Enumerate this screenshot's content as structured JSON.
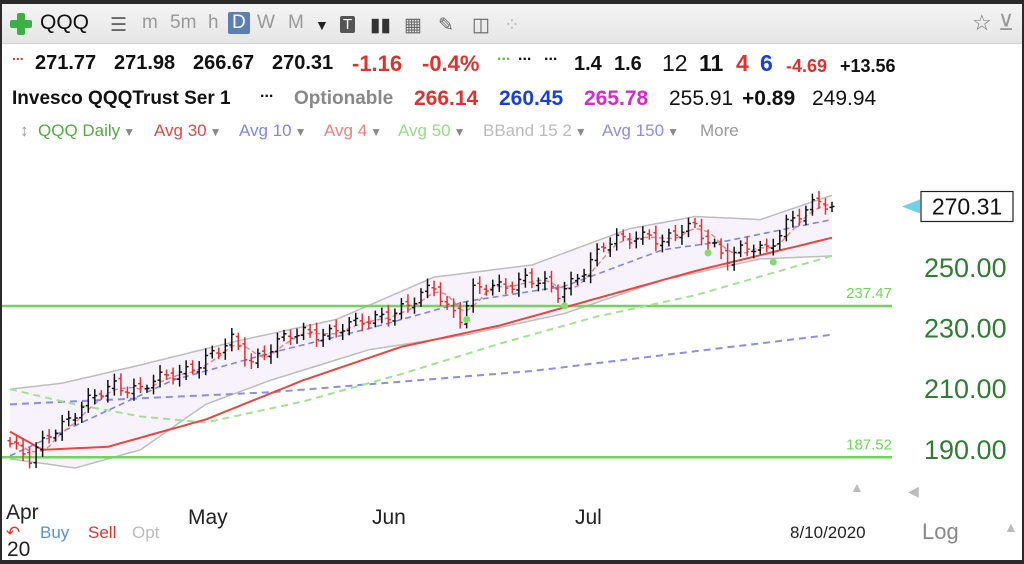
{
  "toolbar": {
    "symbol": "QQQ",
    "timeframes": [
      "m",
      "5m",
      "h",
      "D",
      "W",
      "M"
    ],
    "active_timeframe": "D"
  },
  "quote_row1": {
    "open": "271.77",
    "high": "271.98",
    "low": "266.67",
    "close": "270.31",
    "change": "-1.16",
    "change_pct": "-0.4%",
    "dots": "...",
    "v1": "1.4",
    "v2": "1.6",
    "v3": "12",
    "v4": "11",
    "v5": "4",
    "v6": "6",
    "v7": "-4.69",
    "v8": "+13.56"
  },
  "quote_row2": {
    "name": "Invesco QQQTrust Ser 1",
    "dots": "...",
    "optionable": "Optionable",
    "a1": "266.14",
    "a2": "260.45",
    "a3": "265.78",
    "a4": "255.91",
    "a5": "+0.89",
    "a6": "249.94"
  },
  "indicators": {
    "series": "QQQ Daily",
    "avg30": "Avg 30",
    "avg10": "Avg 10",
    "avg4": "Avg 4",
    "avg50": "Avg 50",
    "bband": "BBand 15 2",
    "avg150": "Avg 150",
    "more": "More"
  },
  "colors": {
    "avg30": "#e8473f",
    "avg10": "#7f86e6",
    "avg4": "#ee8080",
    "avg50": "#8fe07f",
    "bband": "#bdbdbd",
    "avg150": "#8a8ee8",
    "hline": "#6fd65a",
    "price_tag": "#6fd0ea"
  },
  "bottom": {
    "buy": "Buy",
    "sell": "Sell",
    "opt": "Opt",
    "date": "8/10/2020",
    "log": "Log",
    "year": "20"
  },
  "chart_data": {
    "type": "line",
    "ylim": [
      183,
      285
    ],
    "y_ticks": [
      "250.00",
      "230.00",
      "210.00",
      "190.00"
    ],
    "y_tick_values": [
      250,
      230,
      210,
      190
    ],
    "x_labels": [
      "Apr",
      "May",
      "Jun",
      "Jul"
    ],
    "last_price": "270.31",
    "horizontal_lines": [
      {
        "value": 237.47,
        "label": "237.47"
      },
      {
        "value": 187.52,
        "label": "187.52"
      }
    ],
    "price_anchors": [
      {
        "bar": 0,
        "price": 192
      },
      {
        "bar": 3,
        "price": 186
      },
      {
        "bar": 6,
        "price": 196
      },
      {
        "bar": 10,
        "price": 202
      },
      {
        "bar": 13,
        "price": 207
      },
      {
        "bar": 16,
        "price": 212
      },
      {
        "bar": 20,
        "price": 210
      },
      {
        "bar": 24,
        "price": 214
      },
      {
        "bar": 28,
        "price": 218
      },
      {
        "bar": 32,
        "price": 222
      },
      {
        "bar": 34,
        "price": 226
      },
      {
        "bar": 37,
        "price": 220
      },
      {
        "bar": 41,
        "price": 225
      },
      {
        "bar": 45,
        "price": 229
      },
      {
        "bar": 49,
        "price": 229
      },
      {
        "bar": 53,
        "price": 231
      },
      {
        "bar": 57,
        "price": 235
      },
      {
        "bar": 61,
        "price": 237
      },
      {
        "bar": 65,
        "price": 244
      },
      {
        "bar": 67,
        "price": 238
      },
      {
        "bar": 69,
        "price": 234
      },
      {
        "bar": 71,
        "price": 242
      },
      {
        "bar": 75,
        "price": 244
      },
      {
        "bar": 79,
        "price": 247
      },
      {
        "bar": 82,
        "price": 244
      },
      {
        "bar": 84,
        "price": 241
      },
      {
        "bar": 87,
        "price": 248
      },
      {
        "bar": 91,
        "price": 257
      },
      {
        "bar": 95,
        "price": 260
      },
      {
        "bar": 98,
        "price": 262
      },
      {
        "bar": 100,
        "price": 258
      },
      {
        "bar": 103,
        "price": 262
      },
      {
        "bar": 105,
        "price": 264
      },
      {
        "bar": 107,
        "price": 260
      },
      {
        "bar": 110,
        "price": 253
      },
      {
        "bar": 113,
        "price": 256
      },
      {
        "bar": 116,
        "price": 257
      },
      {
        "bar": 119,
        "price": 265
      },
      {
        "bar": 122,
        "price": 268
      },
      {
        "bar": 124,
        "price": 272
      },
      {
        "bar": 126,
        "price": 270.3
      }
    ],
    "bar_count": 127,
    "lines": {
      "avg30": [
        [
          0,
          196
        ],
        [
          5,
          190
        ],
        [
          15,
          191
        ],
        [
          30,
          200
        ],
        [
          45,
          213
        ],
        [
          60,
          224
        ],
        [
          75,
          231
        ],
        [
          90,
          240
        ],
        [
          105,
          249
        ],
        [
          126,
          260
        ]
      ],
      "avg10": [
        [
          0,
          188
        ],
        [
          10,
          198
        ],
        [
          25,
          213
        ],
        [
          40,
          222
        ],
        [
          55,
          230
        ],
        [
          70,
          239
        ],
        [
          85,
          244
        ],
        [
          100,
          256
        ],
        [
          110,
          259
        ],
        [
          126,
          266
        ]
      ],
      "avg50": [
        [
          0,
          210
        ],
        [
          10,
          205
        ],
        [
          20,
          201
        ],
        [
          30,
          199
        ],
        [
          45,
          206
        ],
        [
          60,
          215
        ],
        [
          75,
          225
        ],
        [
          90,
          234
        ],
        [
          105,
          241
        ],
        [
          126,
          254
        ]
      ],
      "avg150": [
        [
          0,
          205
        ],
        [
          40,
          209
        ],
        [
          80,
          216
        ],
        [
          126,
          228
        ]
      ],
      "bb_upper": [
        [
          0,
          210
        ],
        [
          8,
          212
        ],
        [
          20,
          218
        ],
        [
          35,
          226
        ],
        [
          50,
          233
        ],
        [
          65,
          247
        ],
        [
          80,
          251
        ],
        [
          95,
          263
        ],
        [
          105,
          267
        ],
        [
          115,
          266
        ],
        [
          126,
          274
        ]
      ],
      "bb_lower": [
        [
          0,
          187
        ],
        [
          10,
          184
        ],
        [
          20,
          190
        ],
        [
          30,
          205
        ],
        [
          40,
          213
        ],
        [
          55,
          223
        ],
        [
          70,
          228
        ],
        [
          85,
          235
        ],
        [
          100,
          246
        ],
        [
          115,
          253
        ],
        [
          126,
          254
        ]
      ]
    },
    "markers": [
      {
        "bar": 70,
        "price": 233
      },
      {
        "bar": 85,
        "price": 237.5
      },
      {
        "bar": 107,
        "price": 255
      },
      {
        "bar": 117,
        "price": 252
      }
    ]
  }
}
